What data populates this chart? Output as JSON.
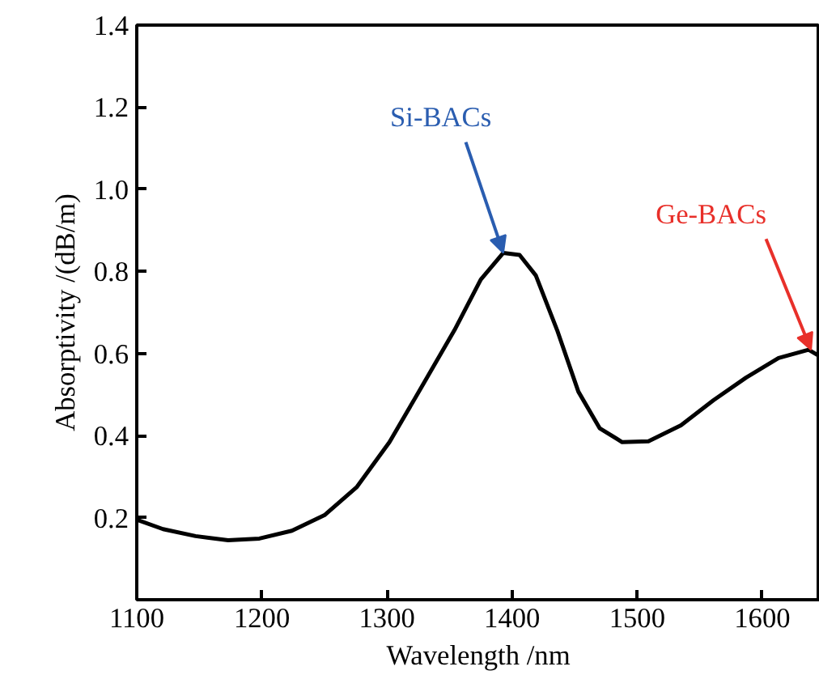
{
  "chart_data": {
    "type": "line",
    "xlabel": "Wavelength /nm",
    "ylabel": "Absorptivity /(dB/m)",
    "x": [
      1100,
      1121,
      1147,
      1173,
      1198,
      1224,
      1250,
      1276,
      1302,
      1328,
      1354,
      1375,
      1393,
      1406,
      1419,
      1436,
      1453,
      1470,
      1488,
      1509,
      1535,
      1561,
      1587,
      1613,
      1637,
      1645
    ],
    "series": [
      {
        "color": "#000000",
        "values": [
          0.195,
          0.172,
          0.155,
          0.145,
          0.149,
          0.168,
          0.206,
          0.275,
          0.384,
          0.52,
          0.657,
          0.78,
          0.845,
          0.84,
          0.79,
          0.657,
          0.507,
          0.418,
          0.384,
          0.386,
          0.425,
          0.486,
          0.541,
          0.589,
          0.609,
          0.595
        ]
      }
    ],
    "xlim": [
      1100,
      1646
    ],
    "ylim": [
      0,
      1.4
    ],
    "xticks": [
      1100,
      1200,
      1300,
      1400,
      1500,
      1600
    ],
    "yticks": [
      {
        "value": 0,
        "label": null
      },
      0.2,
      0.4,
      0.6,
      0.8,
      {
        "value": 1.0,
        "label": "1.0"
      },
      1.2,
      1.4
    ],
    "annotations": [
      {
        "text": "Si-BACs",
        "x": 1393,
        "y": 0.845
      },
      {
        "text": "Ge-BACs",
        "x": 1639,
        "y": 0.609
      }
    ],
    "marker": "none",
    "line_style": "solid"
  }
}
